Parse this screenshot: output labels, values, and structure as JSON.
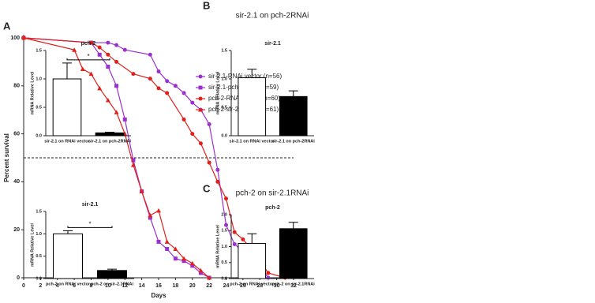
{
  "panels": [
    {
      "label": "A"
    },
    {
      "label": "B",
      "title": "sir-2.1 on pch-2RNAi"
    },
    {
      "label": "C",
      "title": "pch-2 on sir-2.1RNAi"
    }
  ],
  "chart_data": [
    {
      "type": "survival",
      "xlabel": "Days",
      "ylabel": "Percent survival",
      "xlim": [
        0,
        32
      ],
      "ylim": [
        0,
        100
      ],
      "xticks": [
        0,
        2,
        4,
        6,
        8,
        10,
        12,
        14,
        16,
        18,
        20,
        22,
        24,
        26,
        28,
        30,
        32
      ],
      "yticks": [
        0,
        20,
        40,
        60,
        80,
        100
      ],
      "hline": 50,
      "legend": "top-right",
      "series": [
        {
          "name": "sir-2.1-RNAi vector (n=56)",
          "color": "#9b30d0",
          "marker": "circle",
          "x": [
            0,
            8,
            10,
            11,
            12,
            15,
            16,
            17,
            18,
            19,
            20,
            21,
            22,
            23,
            24,
            25,
            26,
            27,
            28,
            29
          ],
          "values": [
            100,
            98,
            98,
            97,
            95,
            93,
            86,
            82,
            80,
            77,
            73,
            70,
            64,
            45,
            22,
            14,
            11,
            7,
            5,
            0
          ]
        },
        {
          "name": "sir-2.1-pch-2RNAi (n=59)",
          "color": "#9b30d0",
          "marker": "square",
          "x": [
            0,
            8,
            9,
            10,
            11,
            12,
            13,
            14,
            15,
            16,
            17,
            18,
            19,
            20,
            21,
            22
          ],
          "values": [
            100,
            98,
            93,
            88,
            80,
            66,
            49,
            36,
            25,
            15,
            12,
            8,
            7,
            5,
            2,
            0
          ]
        },
        {
          "name": "pch-2-RNAi vector (n=60)",
          "color": "#e0201b",
          "marker": "circle",
          "x": [
            0,
            8,
            9,
            10,
            11,
            13,
            15,
            16,
            17,
            19,
            20,
            21,
            22,
            23,
            24,
            25,
            26,
            27,
            28,
            29,
            31
          ],
          "values": [
            100,
            98,
            96,
            93,
            90,
            85,
            83,
            79,
            77,
            66,
            60,
            56,
            48,
            40,
            33,
            19,
            16,
            12,
            7,
            2,
            0
          ]
        },
        {
          "name": "pch-2-sir-2.1RNAi (n=61)",
          "color": "#e0201b",
          "marker": "triangle",
          "x": [
            0,
            6,
            7,
            8,
            9,
            10,
            11,
            12,
            13,
            14,
            15,
            16,
            17,
            18,
            19,
            20,
            21,
            22
          ],
          "values": [
            100,
            95,
            87,
            85,
            79,
            74,
            69,
            60,
            47,
            36,
            26,
            28,
            15,
            12,
            8,
            6,
            3,
            0
          ]
        }
      ]
    },
    {
      "type": "bar",
      "title": "pch-2",
      "ylabel": "mRNA Relative Level",
      "categories": [
        "sir-2.1 on RNAi vector",
        "sir-2.1 on pch-2RNAi"
      ],
      "values": [
        1.0,
        0.05
      ],
      "errors": [
        0.28,
        0.01
      ],
      "colors": [
        "#ffffff",
        "#000000"
      ],
      "ylim": [
        0,
        1.5
      ],
      "yticks": [
        {
          "value": 0,
          "label": "0.0"
        },
        0.5,
        {
          "value": 1,
          "label": "1.0"
        },
        1.5
      ],
      "significance": "*"
    },
    {
      "type": "bar",
      "title": "sir-2.1",
      "ylabel": "mRNA Relative Level",
      "categories": [
        "sir-2.1 on RNAi vector",
        "sir-2.1 on pch-2RNAi"
      ],
      "values": [
        1.02,
        0.69
      ],
      "errors": [
        0.15,
        0.1
      ],
      "colors": [
        "#ffffff",
        "#000000"
      ],
      "ylim": [
        0,
        1.5
      ],
      "yticks": [
        {
          "value": 0,
          "label": "0.0"
        },
        0.5,
        {
          "value": 1,
          "label": "1.0"
        },
        1.5
      ]
    },
    {
      "type": "bar",
      "title": "sir-2.1",
      "ylabel": "mRNA Relative Level",
      "categories": [
        "pch-2 on RNAi vector",
        "pch-2 on sir-2.1RNAi"
      ],
      "values": [
        1.0,
        0.18
      ],
      "errors": [
        0.07,
        0.03
      ],
      "colors": [
        "#ffffff",
        "#000000"
      ],
      "ylim": [
        0,
        1.5
      ],
      "yticks": [
        {
          "value": 0,
          "label": "0.0"
        },
        0.5,
        {
          "value": 1,
          "label": "1.0"
        },
        1.5
      ],
      "significance": "*"
    },
    {
      "type": "bar",
      "title": "pch-2",
      "ylabel": "mRNA Relative Level",
      "categories": [
        "pch-2 on RNAi vector",
        "pch-2 on sir-2.1RNAi"
      ],
      "values": [
        1.1,
        1.56
      ],
      "errors": [
        0.3,
        0.2
      ],
      "colors": [
        "#ffffff",
        "#000000"
      ],
      "ylim": [
        0,
        2
      ],
      "yticks": [
        {
          "value": 0,
          "label": "0.0"
        },
        0.5,
        {
          "value": 1,
          "label": "1.0"
        },
        1.5,
        {
          "value": 2,
          "label": "2.0"
        }
      ]
    }
  ]
}
